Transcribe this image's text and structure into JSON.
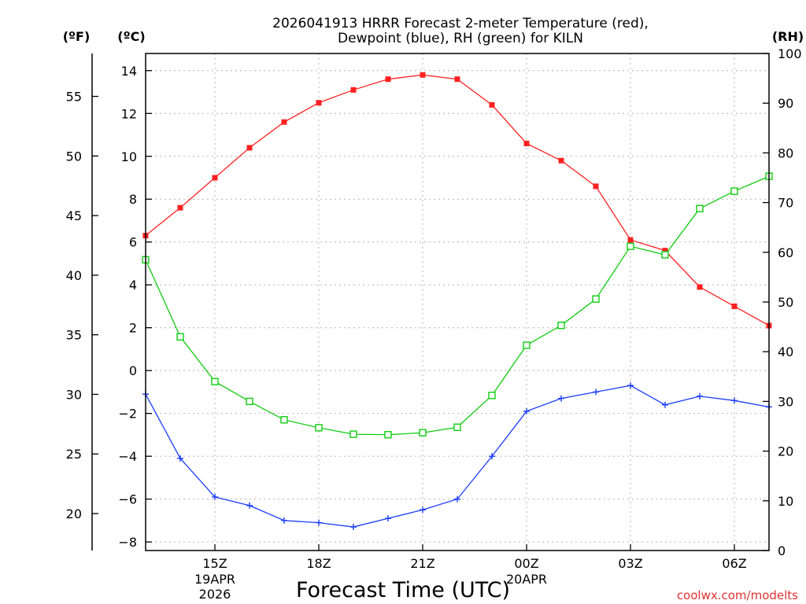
{
  "chart_data": {
    "type": "line",
    "title_line1": "2026041913 HRRR Forecast 2-meter Temperature (red),",
    "title_line2": "Dewpoint (blue), RH (green) for KILN",
    "xlabel": "Forecast Time (UTC)",
    "watermark": "coolwx.com/modelts",
    "unit_labels": {
      "fahrenheit": "(ºF)",
      "celsius": "(ºC)",
      "rh": "(RH)"
    },
    "x": [
      14,
      15,
      16,
      17,
      18,
      19,
      20,
      21,
      22,
      23,
      24,
      25,
      26,
      27,
      28,
      29,
      30,
      31
    ],
    "xlim": [
      13,
      31
    ],
    "x_ticks": [
      {
        "x": 15,
        "label": "15Z",
        "date_line1": "19APR",
        "date_line2": "2026"
      },
      {
        "x": 18,
        "label": "18Z"
      },
      {
        "x": 21,
        "label": "21Z"
      },
      {
        "x": 24,
        "label": "00Z",
        "date_line1": "20APR"
      },
      {
        "x": 27,
        "label": "03Z"
      },
      {
        "x": 30,
        "label": "06Z"
      }
    ],
    "celsius_axis": {
      "ylim": [
        -8.4,
        14.8
      ],
      "ticks": [
        -8,
        -6,
        -4,
        -2,
        0,
        2,
        4,
        6,
        8,
        10,
        12,
        14
      ]
    },
    "fahrenheit_axis": {
      "ylim": [
        16.9,
        58.6
      ],
      "ticks": [
        20,
        25,
        30,
        35,
        40,
        45,
        50,
        55
      ]
    },
    "rh_axis": {
      "ylim": [
        0,
        100
      ],
      "ticks": [
        0,
        10,
        20,
        30,
        40,
        50,
        60,
        70,
        80,
        90,
        100
      ]
    },
    "series": [
      {
        "name": "2-meter Temperature",
        "axis": "celsius",
        "color": "#ff2020",
        "marker": "filled-square",
        "x": [
          13,
          14,
          15,
          16,
          17,
          18,
          19,
          20,
          21,
          22,
          23,
          24,
          25,
          26,
          27,
          28,
          29,
          30,
          31
        ],
        "values": [
          6.3,
          7.6,
          9.0,
          10.4,
          11.6,
          12.5,
          13.1,
          13.6,
          13.8,
          13.6,
          12.4,
          10.6,
          9.8,
          8.6,
          6.1,
          5.6,
          3.9,
          3.0,
          2.1
        ]
      },
      {
        "name": "Dewpoint",
        "axis": "celsius",
        "color": "#1a3cff",
        "marker": "plus",
        "x": [
          13,
          14,
          15,
          16,
          17,
          18,
          19,
          20,
          21,
          22,
          23,
          24,
          25,
          26,
          27,
          28,
          29,
          30,
          31
        ],
        "values": [
          -1.1,
          -4.1,
          -5.9,
          -6.3,
          -7.0,
          -7.1,
          -7.3,
          -6.9,
          -6.5,
          -6.0,
          -4.0,
          -1.9,
          -1.3,
          -1.0,
          -0.7,
          -1.6,
          -1.2,
          -1.4,
          -1.7
        ]
      },
      {
        "name": "Relative Humidity",
        "axis": "rh",
        "color": "#10cc10",
        "marker": "open-square",
        "x": [
          13,
          14,
          15,
          16,
          17,
          18,
          19,
          20,
          21,
          22,
          23,
          24,
          25,
          26,
          27,
          28,
          29,
          30,
          31
        ],
        "values": [
          58.5,
          43.0,
          34.0,
          30.0,
          26.3,
          24.7,
          23.4,
          23.3,
          23.7,
          24.8,
          31.2,
          41.3,
          45.3,
          50.6,
          61.2,
          59.5,
          68.8,
          72.3,
          75.3
        ]
      }
    ]
  }
}
